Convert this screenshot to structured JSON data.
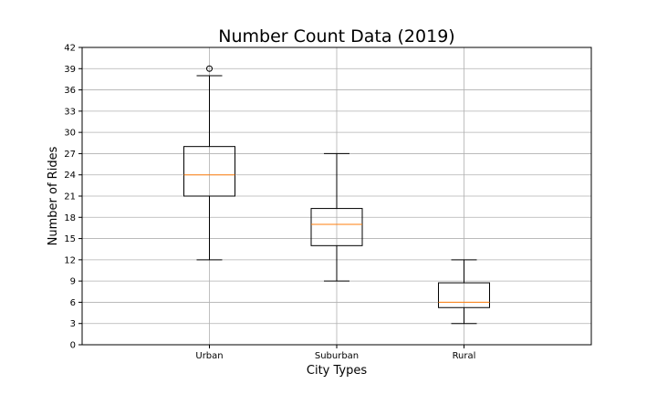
{
  "chart_data": {
    "type": "boxplot",
    "title": "Number Count Data (2019)",
    "xlabel": "City Types",
    "ylabel": "Number of Rides",
    "ylim": [
      0,
      42
    ],
    "y_ticks": [
      0,
      3,
      6,
      9,
      12,
      15,
      18,
      21,
      24,
      27,
      30,
      33,
      36,
      39,
      42
    ],
    "grid": true,
    "categories": [
      "Urban",
      "Suburban",
      "Rural"
    ],
    "boxes": [
      {
        "category": "Urban",
        "whisker_low": 12,
        "q1": 21,
        "median": 24,
        "q3": 28,
        "whisker_high": 38,
        "outliers": [
          39
        ]
      },
      {
        "category": "Suburban",
        "whisker_low": 9,
        "q1": 14,
        "median": 17,
        "q3": 19.25,
        "whisker_high": 27,
        "outliers": []
      },
      {
        "category": "Rural",
        "whisker_low": 3,
        "q1": 5.25,
        "median": 6,
        "q3": 8.75,
        "whisker_high": 12,
        "outliers": []
      }
    ],
    "colors": {
      "box": "#000000",
      "median": "#ff7f0e",
      "grid": "#b0b0b0",
      "background": "#ffffff"
    }
  }
}
